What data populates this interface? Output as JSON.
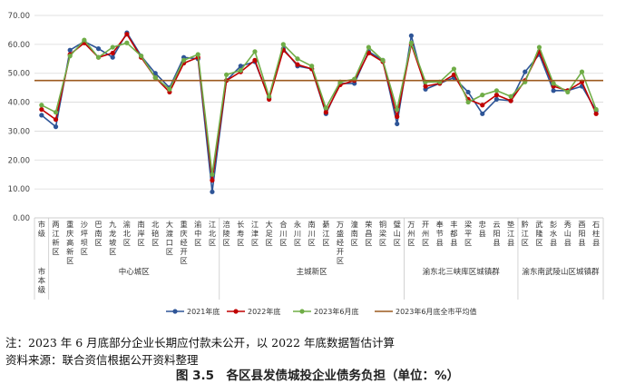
{
  "chart_data": {
    "type": "line",
    "ylim": [
      0,
      70
    ],
    "y_ticks": [
      "0.00",
      "10.00",
      "20.00",
      "30.00",
      "40.00",
      "50.00",
      "60.00",
      "70.00"
    ],
    "categories": [
      "市级",
      "两江新区",
      "重庆高新区",
      "沙坪坝区",
      "巴南区",
      "九龙坡区",
      "渝北区",
      "南岸区",
      "北碚区",
      "大渡口区",
      "重庆经开区",
      "渝中区",
      "江北区",
      "涪陵区",
      "长寿区",
      "江津区",
      "大足区",
      "合川区",
      "永川区",
      "南川区",
      "綦江区",
      "万盛经开区",
      "潼南区",
      "荣昌区",
      "铜梁区",
      "璧山区",
      "万州区",
      "开州区",
      "奉节县",
      "丰都县",
      "梁平区",
      "忠县",
      "云阳县",
      "垫江县",
      "黔江区",
      "武隆区",
      "彭水县",
      "秀山县",
      "酉阳县",
      "石柱县"
    ],
    "groups": [
      {
        "label": "市本级",
        "start": 0,
        "end": 0
      },
      {
        "label": "中心城区",
        "start": 1,
        "end": 12
      },
      {
        "label": "主城新区",
        "start": 13,
        "end": 25
      },
      {
        "label": "渝东北三峡库区城镇群",
        "start": 26,
        "end": 33
      },
      {
        "label": "渝东南武陵山区城镇群",
        "start": 34,
        "end": 39
      }
    ],
    "series": [
      {
        "name": "2021年底",
        "color": "#2E5597",
        "values": [
          35.5,
          31.5,
          58,
          61,
          58.5,
          55.5,
          64,
          56,
          50,
          45,
          55.5,
          55,
          9,
          47.5,
          52.5,
          54,
          41.5,
          58.5,
          52.5,
          51.5,
          36,
          46.5,
          46.5,
          57.5,
          54.5,
          32.5,
          63,
          44.5,
          46.5,
          48.5,
          43.5,
          36,
          41,
          40.5,
          50.5,
          56.5,
          44,
          44,
          45.5,
          37
        ]
      },
      {
        "name": "2022年底",
        "color": "#C00000",
        "values": [
          37.5,
          34,
          56.5,
          60.5,
          55.5,
          57,
          63.5,
          55.5,
          48.5,
          43.5,
          53.5,
          55.5,
          13,
          47.5,
          50.5,
          54.5,
          41,
          58,
          53,
          51.5,
          36.5,
          46,
          47.5,
          57,
          54,
          35,
          60,
          45.5,
          46.5,
          49.5,
          41,
          39,
          42.5,
          40.5,
          47.5,
          57.5,
          45.5,
          44,
          47,
          36
        ]
      },
      {
        "name": "2023年6月底",
        "color": "#70AD47",
        "values": [
          39,
          36.5,
          56,
          61.5,
          55.5,
          59,
          60.5,
          56,
          48.5,
          44.5,
          54.5,
          56.5,
          15,
          49.5,
          51,
          57.5,
          42,
          60,
          55,
          52.5,
          38,
          47,
          48,
          59,
          54.5,
          37.5,
          60.5,
          47,
          47,
          51.5,
          40,
          42.5,
          44,
          42,
          47,
          59,
          46.5,
          43.5,
          50.5,
          37.5
        ]
      }
    ],
    "reference_line": {
      "name": "2023年6月底全市平均值",
      "value": 47.5,
      "color": "#9C5A1E"
    }
  },
  "notes": {
    "note1": "注：2023 年 6 月底部分企业长期应付款未公开，以 2022 年底数据暂估计算",
    "note2": "资料来源：联合资信根据公开资料整理",
    "caption": "图 3.5　各区县发债城投企业债务负担（单位：%）"
  }
}
